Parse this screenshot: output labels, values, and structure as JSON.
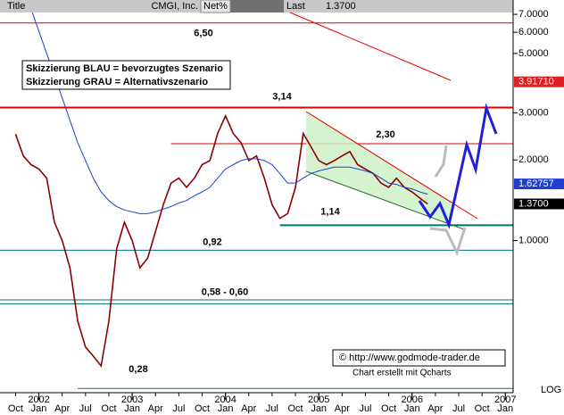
{
  "chart_data": {
    "type": "line",
    "header": {
      "title": "Title",
      "symbol": "CMGI, Inc.",
      "net": "Net%",
      "last_label": "Last",
      "last": "1.3700"
    },
    "notes": [
      "Skizzierung BLAU = bevorzugtes Szenario",
      "Skizzierung GRAU = Alternativszenario"
    ],
    "credits": [
      "© http://www.godmode-trader.de",
      "Chart erstellt mit Qcharts"
    ],
    "log_scale": true,
    "scale_label": "LOG",
    "x": [
      "2001-10",
      "2001-11",
      "2001-12",
      "2002-01",
      "2002-02",
      "2002-03",
      "2002-04",
      "2002-05",
      "2002-06",
      "2002-07",
      "2002-08",
      "2002-09",
      "2002-10",
      "2002-11",
      "2002-12",
      "2003-01",
      "2003-02",
      "2003-03",
      "2003-04",
      "2003-05",
      "2003-06",
      "2003-07",
      "2003-08",
      "2003-09",
      "2003-10",
      "2003-11",
      "2003-12",
      "2004-01",
      "2004-02",
      "2004-03",
      "2004-04",
      "2004-05",
      "2004-06",
      "2004-07",
      "2004-08",
      "2004-09",
      "2004-10",
      "2004-11",
      "2004-12",
      "2005-01",
      "2005-02",
      "2005-03",
      "2005-04",
      "2005-05",
      "2005-06",
      "2005-07",
      "2005-08",
      "2005-09",
      "2005-10",
      "2005-11",
      "2005-12",
      "2006-01",
      "2006-02",
      "2006-03"
    ],
    "series": [
      {
        "color": "#8b0000",
        "values": [
          2.5,
          2.07,
          1.92,
          1.85,
          1.71,
          1.17,
          1.0,
          0.79,
          0.5,
          0.4,
          0.37,
          0.34,
          0.5,
          0.93,
          1.17,
          1.0,
          0.79,
          0.86,
          1.08,
          1.36,
          1.64,
          1.71,
          1.58,
          1.71,
          1.92,
          1.99,
          2.51,
          2.92,
          2.51,
          2.32,
          1.99,
          2.07,
          1.71,
          1.36,
          1.21,
          1.26,
          1.58,
          2.51,
          2.24,
          1.99,
          1.92,
          1.99,
          2.07,
          2.15,
          1.92,
          1.85,
          1.78,
          1.64,
          1.58,
          1.71,
          1.58,
          1.52,
          1.44,
          1.37
        ]
      },
      {
        "color": "#1f3fd0",
        "values": [
          null,
          null,
          7.34,
          6.05,
          5.0,
          4.13,
          3.41,
          2.81,
          2.32,
          1.99,
          1.71,
          1.52,
          1.41,
          1.34,
          1.3,
          1.28,
          1.26,
          1.26,
          1.28,
          1.31,
          1.34,
          1.38,
          1.41,
          1.47,
          1.52,
          1.58,
          1.71,
          1.85,
          1.92,
          1.99,
          2.02,
          2.02,
          1.99,
          1.92,
          1.78,
          1.64,
          1.64,
          1.71,
          1.78,
          1.82,
          1.85,
          1.88,
          1.88,
          1.88,
          1.85,
          1.82,
          1.78,
          1.71,
          1.64,
          1.62,
          1.58,
          1.56,
          1.52,
          1.49
        ]
      }
    ],
    "levels": [
      {
        "values": [
          6.5
        ],
        "label": "6,50",
        "color": "#e00000"
      },
      {
        "values": [
          3.14
        ],
        "label": "3,14",
        "color": "#e00000"
      },
      {
        "values": [
          2.3
        ],
        "label": "2,30",
        "color": "#e00000",
        "from": "2003-06"
      },
      {
        "values": [
          1.14
        ],
        "label": "1,14",
        "color": "#007070",
        "from": "2004-08"
      },
      {
        "values": [
          0.92
        ],
        "label": "0,92",
        "color": "#007070"
      },
      {
        "values": [
          0.58,
          0.6
        ],
        "label": "0,58 - 0,60",
        "color": "#007070"
      },
      {
        "values": [
          0.28
        ],
        "label": "0,28",
        "color": "#007070",
        "from": "2002-06"
      }
    ],
    "price_markers": [
      {
        "value": 3.9171,
        "label": "3.91710",
        "color": "#e02020"
      },
      {
        "value": 1.62757,
        "label": "1.62757",
        "color": "#1f3fd0"
      },
      {
        "value": 1.37,
        "label": "1.3700",
        "color": "#000000"
      }
    ],
    "xlim": [
      "2001-08",
      "2007-02"
    ],
    "ylim": [
      0.27,
      7.92
    ],
    "yticks": [
      {
        "value": 7,
        "label": "7.0000"
      },
      {
        "value": 6,
        "label": "6.0000"
      },
      {
        "value": 5,
        "label": "5.0000"
      },
      {
        "value": 3,
        "label": "3.0000"
      },
      {
        "value": 2,
        "label": "2.0000"
      },
      {
        "value": 1,
        "label": "1.0000"
      }
    ],
    "xticks": [
      {
        "value": "2001-10",
        "label": "Oct"
      },
      {
        "value": "2002-01",
        "label": "Jan"
      },
      {
        "value": "2002-04",
        "label": "Apr"
      },
      {
        "value": "2002-07",
        "label": "Jul"
      },
      {
        "value": "2002-10",
        "label": "Oct"
      },
      {
        "value": "2003-01",
        "label": "Jan"
      },
      {
        "value": "2003-04",
        "label": "Apr"
      },
      {
        "value": "2003-07",
        "label": "Jul"
      },
      {
        "value": "2003-10",
        "label": "Oct"
      },
      {
        "value": "2004-01",
        "label": "Jan"
      },
      {
        "value": "2004-04",
        "label": "Apr"
      },
      {
        "value": "2004-07",
        "label": "Jul"
      },
      {
        "value": "2004-10",
        "label": "Oct"
      },
      {
        "value": "2005-01",
        "label": "Jan"
      },
      {
        "value": "2005-04",
        "label": "Apr"
      },
      {
        "value": "2005-07",
        "label": "Jul"
      },
      {
        "value": "2005-10",
        "label": "Oct"
      },
      {
        "value": "2006-01",
        "label": "Jan"
      },
      {
        "value": "2006-04",
        "label": "Apr"
      },
      {
        "value": "2006-07",
        "label": "Jul"
      },
      {
        "value": "2006-10",
        "label": "Oct"
      },
      {
        "value": "2007-01",
        "label": "Jan"
      }
    ],
    "year_ticks": [
      {
        "value": "2002-01",
        "label": "2002"
      },
      {
        "value": "2003-01",
        "label": "2003"
      },
      {
        "value": "2004-01",
        "label": "2004"
      },
      {
        "value": "2005-01",
        "label": "2005"
      },
      {
        "value": "2006-01",
        "label": "2006"
      },
      {
        "value": "2007-01",
        "label": "2007"
      }
    ]
  }
}
